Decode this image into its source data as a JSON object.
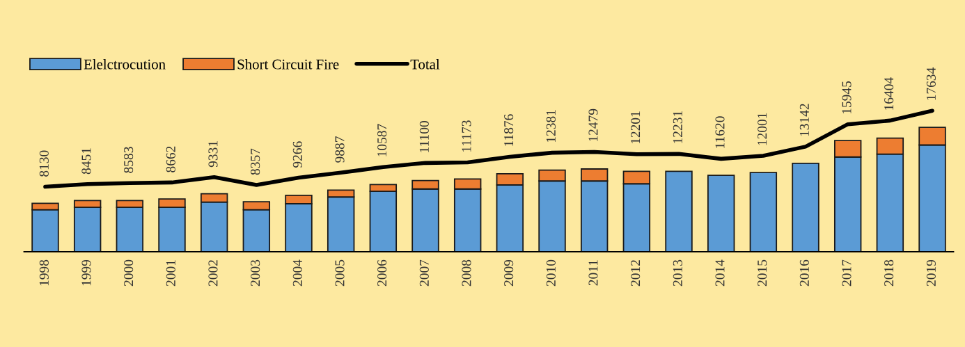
{
  "chart_data": {
    "type": "bar",
    "stacked": true,
    "tick_labels": "x",
    "legend": "top left",
    "grid": false,
    "categories": [
      "1998",
      "1999",
      "2000",
      "2001",
      "2002",
      "2003",
      "2004",
      "2005",
      "2006",
      "2007",
      "2008",
      "2009",
      "2010",
      "2011",
      "2012",
      "2013",
      "2014",
      "2015",
      "2016",
      "2017",
      "2018",
      "2019"
    ],
    "series": [
      {
        "name": "Elelctrocution",
        "color": "#5b9bd5",
        "values": [
          5250,
          5550,
          5550,
          5550,
          6200,
          5250,
          6000,
          6850,
          7550,
          7850,
          7850,
          8350,
          8850,
          8850,
          8500,
          10050,
          9550,
          9900,
          11050,
          11850,
          12200,
          13350
        ]
      },
      {
        "name": "Short Circuit Fire",
        "color": "#ed7d31",
        "values": [
          800,
          850,
          850,
          1050,
          1050,
          1000,
          1050,
          850,
          850,
          1050,
          1250,
          1400,
          1350,
          1500,
          1550,
          null,
          null,
          null,
          null,
          2050,
          2000,
          2200
        ]
      },
      {
        "name": "Total",
        "type": "line",
        "color": "#000000",
        "values": [
          8130,
          8451,
          8583,
          8662,
          9331,
          8357,
          9266,
          9887,
          10587,
          11100,
          11173,
          11876,
          12381,
          12479,
          12201,
          12231,
          11620,
          12001,
          13142,
          15945,
          16404,
          17634
        ],
        "value_labels": [
          "8130",
          "8451",
          "8583",
          "8662",
          "9331",
          "8357",
          "9266",
          "9887",
          "10587",
          "11100",
          "11173",
          "11876",
          "12381",
          "12479",
          "12201",
          "12231",
          "11620",
          "12001",
          "13142",
          "15945",
          "16404",
          "17634"
        ]
      }
    ]
  }
}
